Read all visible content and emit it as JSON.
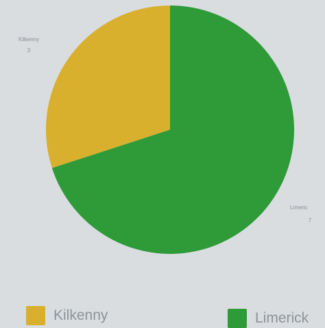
{
  "chart_data": {
    "type": "pie",
    "categories": [
      "Kilkenny",
      "Limerick"
    ],
    "values": [
      3,
      7
    ],
    "colors": [
      "#d8b02e",
      "#2f9a38"
    ],
    "slice_labels": [
      {
        "name": "Kilkenny",
        "value": "3"
      },
      {
        "name": "Limeric",
        "value": "7"
      }
    ],
    "legend": {
      "placement": "bottom",
      "items": [
        {
          "label": "Kilkenny",
          "color": "#d8b02e"
        },
        {
          "label": "Limerick",
          "color": "#2f9a38"
        }
      ]
    }
  }
}
